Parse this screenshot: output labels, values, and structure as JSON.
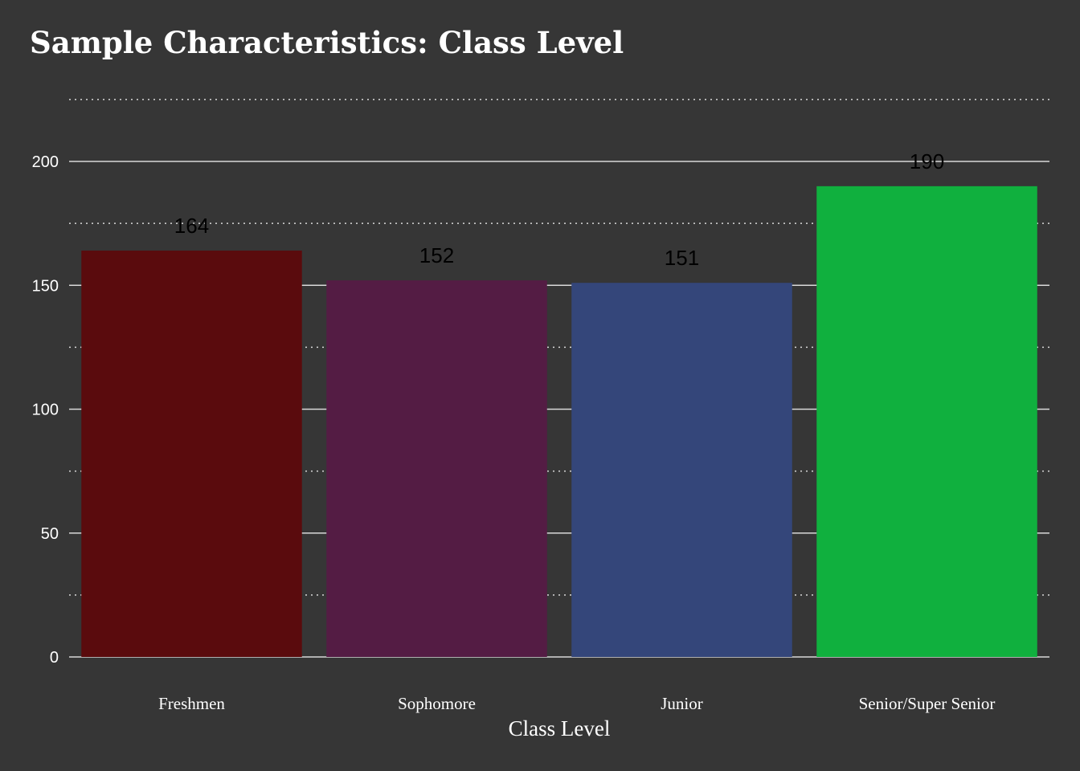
{
  "chart_data": {
    "type": "bar",
    "title": "Sample Characteristics: Class Level",
    "xlabel": "Class Level",
    "ylabel": "",
    "categories": [
      "Freshmen",
      "Sophomore",
      "Junior",
      "Senior/Super Senior"
    ],
    "values": [
      164,
      152,
      151,
      190
    ],
    "data_labels": [
      "164",
      "152",
      "151",
      "190"
    ],
    "bar_colors": [
      "#5a0b0d",
      "#541c44",
      "#34467a",
      "#10b03e"
    ],
    "ylim": [
      0,
      225
    ],
    "yticks": [
      0,
      50,
      100,
      150,
      200
    ],
    "ytick_labels": [
      "0",
      "50",
      "100",
      "150",
      "200"
    ],
    "minor_gridlines": [
      25,
      75,
      125,
      175,
      225
    ],
    "grid": true,
    "legend": "none",
    "colors": {
      "background": "#363636",
      "text": "#ffffff",
      "grid": "#d9d9d9",
      "data_label": "#000000"
    }
  }
}
